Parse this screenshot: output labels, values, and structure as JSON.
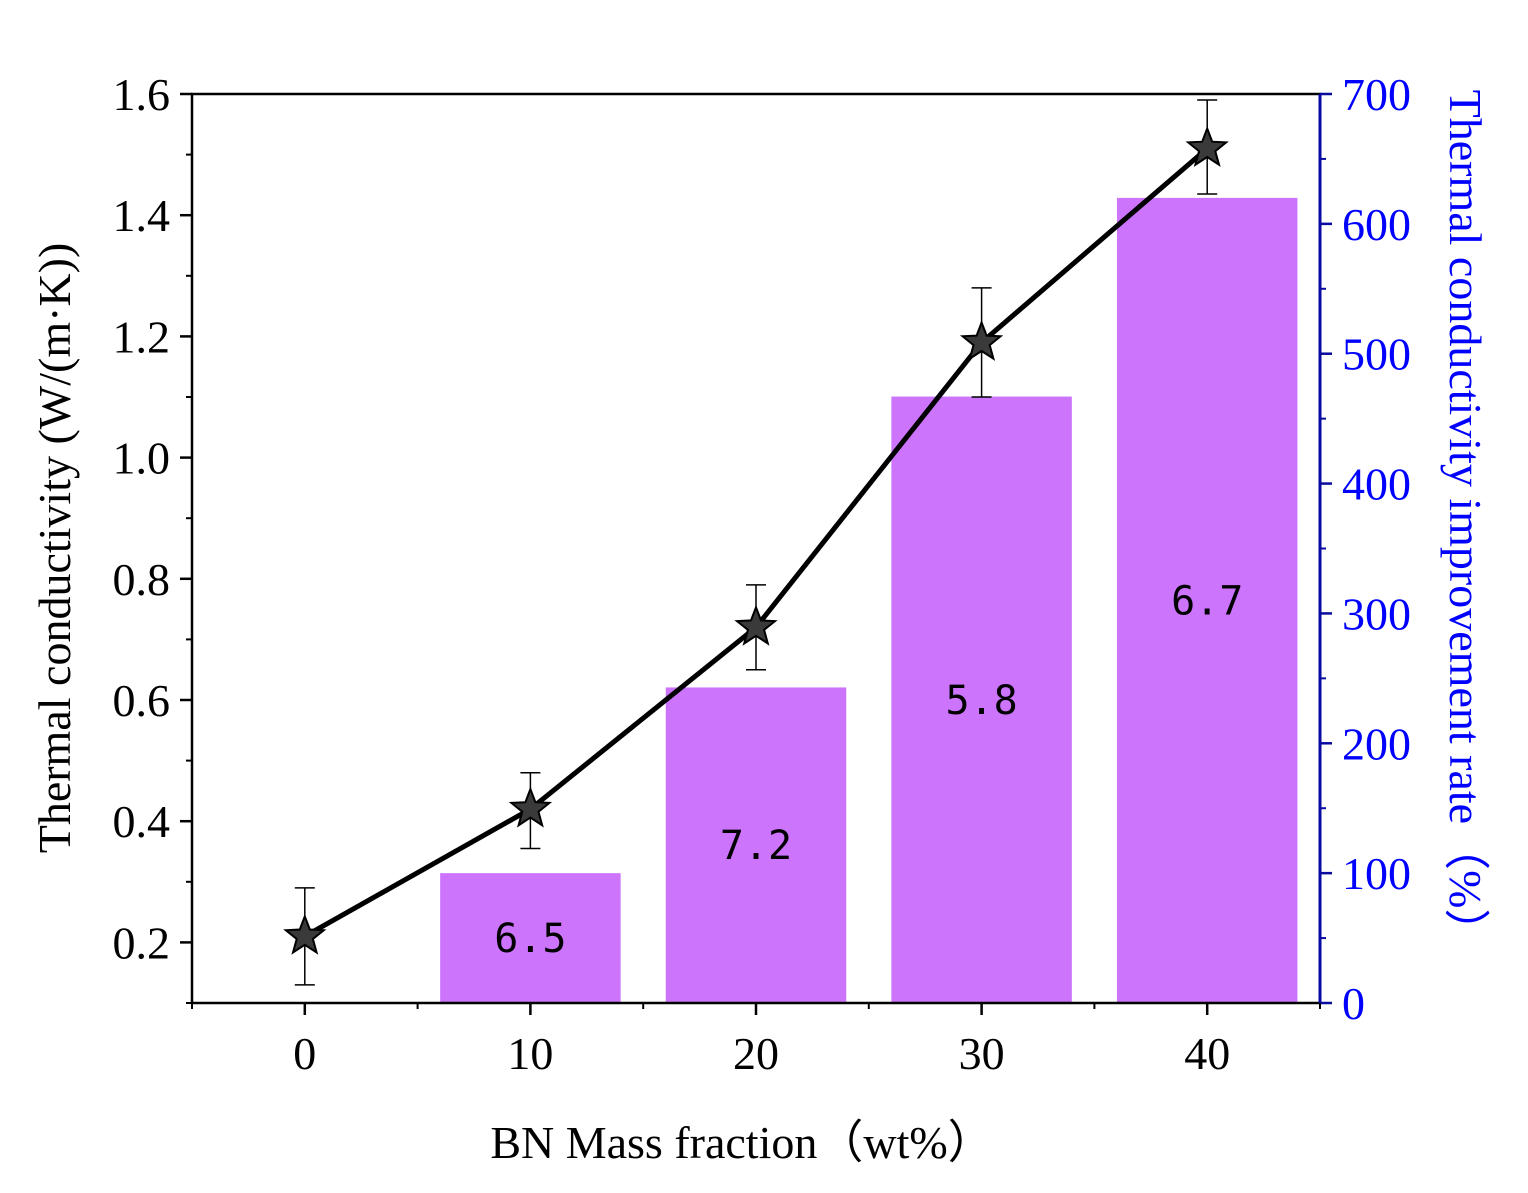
{
  "colors": {
    "bar": "#cc74fc",
    "line": "#000000",
    "marker": "#3a3a3a",
    "right_axis": "#0000ff",
    "right_axis_line": "#0a0aa0"
  },
  "chart_data": {
    "type": "bar+line",
    "xlabel": "BN Mass fraction（wt%）",
    "ylabel_left": "Thermal conductivity (W/(m·K))",
    "ylabel_right": "Thermal conductivity improvement rate（%）",
    "x_ticks": [
      "0",
      "10",
      "20",
      "30",
      "40"
    ],
    "x_range": [
      -5,
      45
    ],
    "y_left_range": [
      0.1,
      1.6
    ],
    "y_left_ticks": [
      "0.2",
      "0.4",
      "0.6",
      "0.8",
      "1.0",
      "1.2",
      "1.4",
      "1.6"
    ],
    "y_right_range": [
      0,
      700
    ],
    "y_right_ticks": [
      "0",
      "100",
      "200",
      "300",
      "400",
      "500",
      "600",
      "700"
    ],
    "series": [
      {
        "name": "Thermal conductivity",
        "type": "line",
        "marker": "star",
        "axis": "left",
        "x": [
          0,
          10,
          20,
          30,
          40
        ],
        "y": [
          0.21,
          0.42,
          0.72,
          1.19,
          1.51
        ],
        "error_low": [
          0.13,
          0.355,
          0.65,
          1.1,
          1.435
        ],
        "error_high": [
          0.29,
          0.48,
          0.79,
          1.28,
          1.59
        ]
      },
      {
        "name": "Thermal conductivity improvement rate",
        "type": "bar",
        "axis": "right",
        "x": [
          10,
          20,
          30,
          40
        ],
        "values": [
          100,
          243,
          467,
          620
        ],
        "labels": [
          "6.5",
          "7.2",
          "5.8",
          "6.7"
        ]
      }
    ]
  }
}
